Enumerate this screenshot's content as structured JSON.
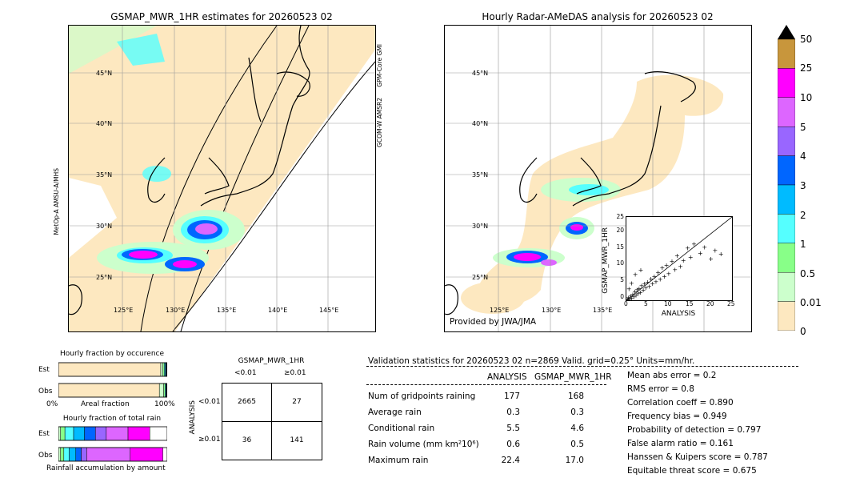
{
  "left_map": {
    "title": "GSMAP_MWR_1HR estimates for 20260523 02",
    "sensor_right_1": "GPM-Core GMI",
    "sensor_right_2": "GCOM-W AMSR2",
    "sensor_left": "MetOp-A AMSU-A/MHS"
  },
  "right_map": {
    "title": "Hourly Radar-AMeDAS analysis for 20260523 02",
    "credit": "Provided by JWA/JMA"
  },
  "map_axes": {
    "lat_labels": [
      "45°N",
      "40°N",
      "35°N",
      "30°N",
      "25°N"
    ],
    "lon_labels": [
      "125°E",
      "130°E",
      "135°E",
      "140°E",
      "145°E"
    ]
  },
  "colorbar": {
    "labels": [
      "50",
      "25",
      "10",
      "5",
      "4",
      "3",
      "2",
      "1",
      "0.5",
      "0.01",
      "0"
    ],
    "colors": [
      "#c8963c",
      "#ff00ff",
      "#dd66ff",
      "#9966ff",
      "#0066ff",
      "#00bbff",
      "#55ffff",
      "#88ff88",
      "#ccffcc",
      "#fde8c0"
    ],
    "over_color": "#000000"
  },
  "scatter_inset": {
    "xlabel": "ANALYSIS",
    "ylabel": "GSMAP_MWR_1HR",
    "ticks": [
      "0",
      "5",
      "10",
      "15",
      "20",
      "25"
    ]
  },
  "fraction": {
    "title1": "Hourly fraction by occurence",
    "title2": "Hourly fraction of total rain",
    "row_est": "Est",
    "row_obs": "Obs",
    "axis_left": "0%",
    "axis_mid": "Areal fraction",
    "axis_right": "100%",
    "footer": "Rainfall accumulation by amount"
  },
  "contingency": {
    "title": "GSMAP_MWR_1HR",
    "col1": "<0.01",
    "col2": "≥0.01",
    "side_label": "ANALYSIS",
    "row1": "<0.01",
    "row2": "≥0.01",
    "cells": [
      [
        "2665",
        "27"
      ],
      [
        "36",
        "141"
      ]
    ]
  },
  "validation": {
    "header": "Validation statistics for 20260523 02  n=2869 Valid. grid=0.25° Units=mm/hr.",
    "col_a": "ANALYSIS",
    "col_b": "GSMAP_MWR_1HR",
    "rows": [
      {
        "label": "Num of gridpoints raining",
        "a": "177",
        "b": "168"
      },
      {
        "label": "Average rain",
        "a": "0.3",
        "b": "0.3"
      },
      {
        "label": "Conditional rain",
        "a": "5.5",
        "b": "4.6"
      },
      {
        "label": "Rain volume (mm km²10⁶)",
        "a": "0.6",
        "b": "0.5"
      },
      {
        "label": "Maximum rain",
        "a": "22.4",
        "b": "17.0"
      }
    ],
    "scores": [
      "Mean abs error =    0.2",
      "RMS error =    0.8",
      "Correlation coeff =  0.890",
      "Frequency bias =  0.949",
      "Probability of detection =  0.797",
      "False alarm ratio =  0.161",
      "Hanssen & Kuipers score =  0.787",
      "Equitable threat score =  0.675"
    ]
  },
  "chart_data": [
    {
      "type": "scatter",
      "title": "",
      "xlabel": "ANALYSIS",
      "ylabel": "GSMAP_MWR_1HR",
      "xlim": [
        0,
        25
      ],
      "ylim": [
        0,
        25
      ],
      "points": [
        [
          0.2,
          0.3
        ],
        [
          0.4,
          0.2
        ],
        [
          0.5,
          0.8
        ],
        [
          0.8,
          0.5
        ],
        [
          1.0,
          1.3
        ],
        [
          1.2,
          0.7
        ],
        [
          1.5,
          1.8
        ],
        [
          1.8,
          1.1
        ],
        [
          2.0,
          2.6
        ],
        [
          2.3,
          1.6
        ],
        [
          2.5,
          3.2
        ],
        [
          2.8,
          2.0
        ],
        [
          3.0,
          3.6
        ],
        [
          3.3,
          2.4
        ],
        [
          3.6,
          4.4
        ],
        [
          4.0,
          3.1
        ],
        [
          4.3,
          5.0
        ],
        [
          4.6,
          3.8
        ],
        [
          5.0,
          5.5
        ],
        [
          5.4,
          4.2
        ],
        [
          5.8,
          6.5
        ],
        [
          6.2,
          5.0
        ],
        [
          6.6,
          7.2
        ],
        [
          7.0,
          5.6
        ],
        [
          7.5,
          8.4
        ],
        [
          8.0,
          6.4
        ],
        [
          8.5,
          9.8
        ],
        [
          9.0,
          7.2
        ],
        [
          9.5,
          10.6
        ],
        [
          10.0,
          8.0
        ],
        [
          10.8,
          11.8
        ],
        [
          11.5,
          9.2
        ],
        [
          12.0,
          13.5
        ],
        [
          12.8,
          10.2
        ],
        [
          13.5,
          12.0
        ],
        [
          14.5,
          15.8
        ],
        [
          15.2,
          13.0
        ],
        [
          16.0,
          17.0
        ],
        [
          17.5,
          14.2
        ],
        [
          18.5,
          16.0
        ],
        [
          20.0,
          12.5
        ],
        [
          21.0,
          15.0
        ],
        [
          22.4,
          14.0
        ],
        [
          0.6,
          3.5
        ],
        [
          1.2,
          5.2
        ],
        [
          2.1,
          7.8
        ],
        [
          3.4,
          9.1
        ]
      ]
    },
    {
      "type": "bar",
      "title": "Hourly fraction by occurence",
      "categories": [
        "Est",
        "Obs"
      ],
      "series": [
        {
          "name": "0",
          "values": [
            0.941,
            0.928
          ]
        },
        {
          "name": "0.01",
          "values": [
            0.02,
            0.04
          ]
        },
        {
          "name": "0.5",
          "values": [
            0.012,
            0.013
          ]
        },
        {
          "name": "1",
          "values": [
            0.01,
            0.008
          ]
        },
        {
          "name": "2",
          "values": [
            0.007,
            0.005
          ]
        },
        {
          "name": "3",
          "values": [
            0.004,
            0.003
          ]
        },
        {
          "name": "4",
          "values": [
            0.003,
            0.002
          ]
        },
        {
          "name": "5",
          "values": [
            0.003,
            0.001
          ]
        }
      ]
    },
    {
      "type": "bar",
      "title": "Hourly fraction of total rain",
      "categories": [
        "Est",
        "Obs"
      ],
      "series": [
        {
          "name": "0.01",
          "values": [
            0.02,
            0.02
          ]
        },
        {
          "name": "0.5",
          "values": [
            0.04,
            0.03
          ]
        },
        {
          "name": "1",
          "values": [
            0.08,
            0.05
          ]
        },
        {
          "name": "2",
          "values": [
            0.1,
            0.06
          ]
        },
        {
          "name": "3",
          "values": [
            0.1,
            0.05
          ]
        },
        {
          "name": "4",
          "values": [
            0.1,
            0.05
          ]
        },
        {
          "name": "5",
          "values": [
            0.2,
            0.4
          ]
        },
        {
          "name": "10",
          "values": [
            0.2,
            0.3
          ]
        },
        {
          "name": "25",
          "values": [
            0.0,
            0.0
          ]
        }
      ]
    }
  ]
}
